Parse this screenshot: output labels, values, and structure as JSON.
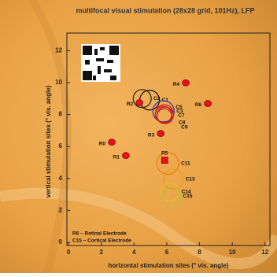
{
  "chart_data": {
    "type": "scatter",
    "title": "multifocal visual stimulation (28x28 grid, 101Hz), LFP",
    "x_label": "horizontal stimulation sites (° vis. angle)",
    "y_label": "vertical stimulation sites (° vis. angle)",
    "xlim": [
      -0.1,
      12.3
    ],
    "ylim": [
      -0.2,
      13.1
    ],
    "xticks": [
      0,
      2,
      4,
      6,
      8,
      10,
      12
    ],
    "yticks": [
      0,
      2,
      4,
      6,
      8,
      10,
      12
    ],
    "legend": [
      "R6 – Retinal Electrode",
      "C15 – Cortical Electrode"
    ],
    "retinal": {
      "color": "#e8101a",
      "labels": [
        "R0",
        "R1",
        "R2",
        "R3",
        "R4",
        "R5",
        "R6"
      ],
      "x": [
        2.64,
        3.5,
        4.33,
        5.63,
        7.16,
        5.87,
        8.51
      ],
      "y": [
        6.27,
        5.43,
        8.74,
        6.81,
        9.98,
        5.14,
        8.69
      ]
    },
    "cortical": {
      "labels": [
        "C1",
        "C2",
        "C3",
        "C5",
        "C7",
        "C8",
        "C9",
        "C11",
        "C13",
        "C14",
        "C15"
      ],
      "x": [
        4.95,
        4.5,
        5.8,
        5.85,
        5.9,
        5.85,
        5.8,
        6.06,
        6.4,
        6.2,
        6.3
      ],
      "y": [
        8.9,
        9.0,
        8.2,
        8.05,
        7.95,
        7.9,
        8.0,
        4.94,
        3.95,
        3.16,
        2.9
      ],
      "r": [
        0.6,
        0.55,
        0.65,
        0.55,
        0.5,
        0.45,
        0.5,
        0.67,
        0.6,
        0.55,
        0.55
      ],
      "colors": [
        "#111111",
        "#222222",
        "#2030c0",
        "#d01020",
        "#c01830",
        "#b02040",
        "#d02010",
        "#f07a10",
        "#f09a10",
        "#e8c020",
        "#b0c040"
      ]
    }
  }
}
